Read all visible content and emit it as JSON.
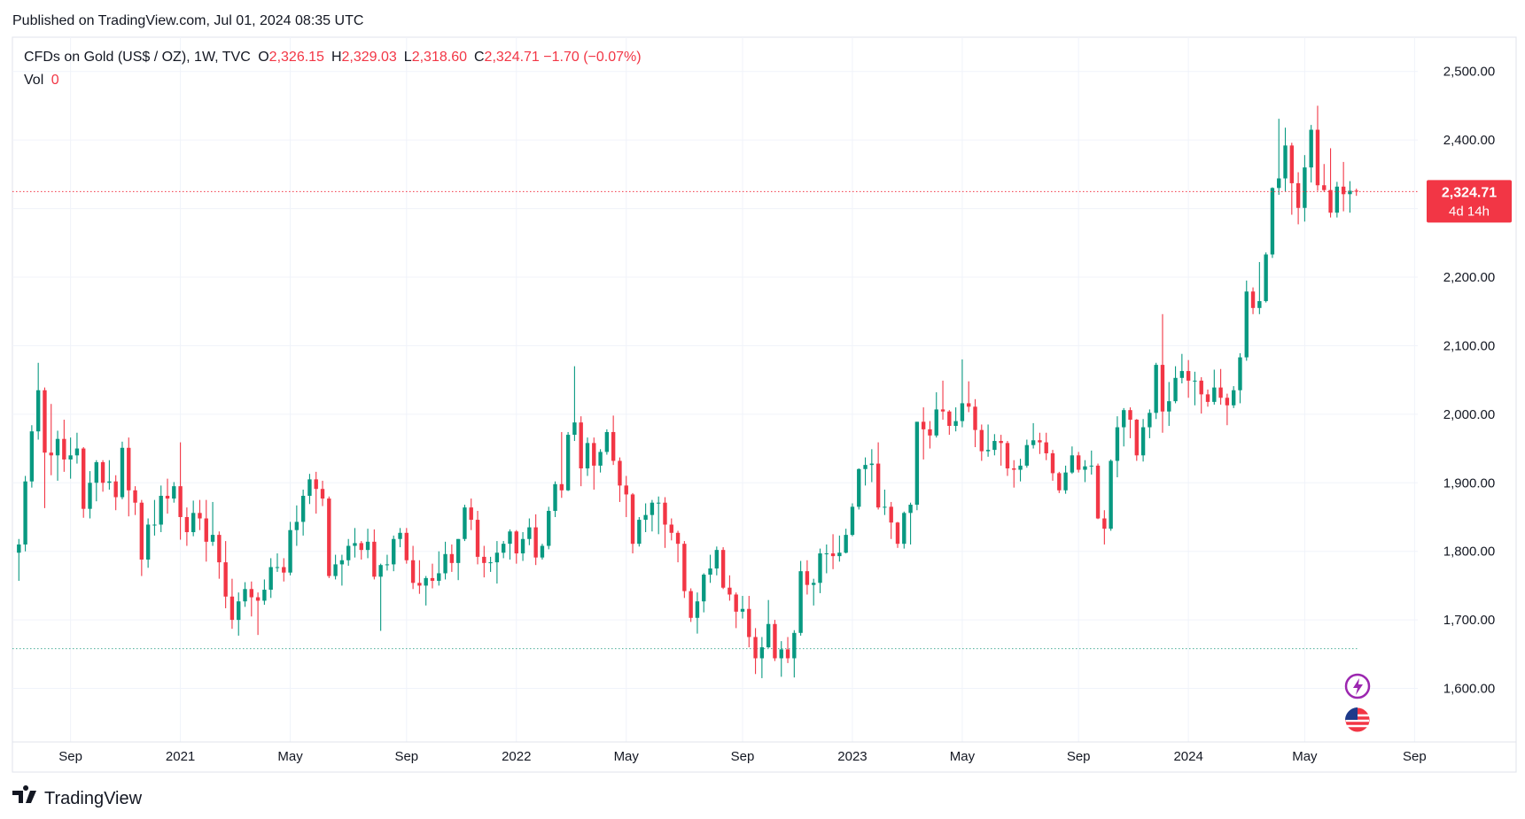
{
  "header": {
    "published": "Published on TradingView.com, Jul 01, 2024 08:35 UTC",
    "symbol": "CFDs on Gold (US$ / OZ), 1W, TVC",
    "ohlc": [
      {
        "letter": "O",
        "text": "2,326.15"
      },
      {
        "letter": "H",
        "text": "2,329.03"
      },
      {
        "letter": "L",
        "text": "2,318.60"
      },
      {
        "letter": "C",
        "text": "2,324.71"
      }
    ],
    "change": "−1.70 (−0.07%)",
    "volume_label": "Vol",
    "volume": "0"
  },
  "footer": {
    "brand": "TradingView"
  },
  "chart_data": {
    "type": "candlestick",
    "up_color": "#089981",
    "down_color": "#f23645",
    "xlim": [
      -1,
      216.5
    ],
    "ylim": [
      1478,
      2550
    ],
    "xticks": [
      {
        "value": 8,
        "label": "Sep"
      },
      {
        "value": 25,
        "label": "2021"
      },
      {
        "value": 42,
        "label": "May"
      },
      {
        "value": 60,
        "label": "Sep"
      },
      {
        "value": 77,
        "label": "2022"
      },
      {
        "value": 94,
        "label": "May"
      },
      {
        "value": 112,
        "label": "Sep"
      },
      {
        "value": 129,
        "label": "2023"
      },
      {
        "value": 146,
        "label": "May"
      },
      {
        "value": 164,
        "label": "Sep"
      },
      {
        "value": 181,
        "label": "2024"
      },
      {
        "value": 199,
        "label": "May"
      },
      {
        "value": 216,
        "label": "Sep"
      }
    ],
    "yticks": [
      {
        "value": 1600,
        "label": "1,600.00"
      },
      {
        "value": 1700,
        "label": "1,700.00"
      },
      {
        "value": 1800,
        "label": "1,800.00"
      },
      {
        "value": 1900,
        "label": "1,900.00"
      },
      {
        "value": 2000,
        "label": "2,000.00"
      },
      {
        "value": 2100,
        "label": "2,100.00"
      },
      {
        "value": 2200,
        "label": "2,200.00"
      },
      {
        "value": 2300,
        "label": "2,300.00"
      },
      {
        "value": 2400,
        "label": "2,400.00"
      },
      {
        "value": 2500,
        "label": "2,500.00"
      }
    ],
    "grid": true,
    "price_label": {
      "value": 2324.71,
      "label": "2,324.71"
    },
    "countdown": "4d 14h",
    "baseline": 1658,
    "baseline_color": "#4caf9a",
    "ohlc": [
      [
        1798,
        1818,
        1757,
        1810
      ],
      [
        1810,
        1910,
        1800,
        1902
      ],
      [
        1902,
        1984,
        1893,
        1975
      ],
      [
        1975,
        2075,
        1963,
        2035
      ],
      [
        2035,
        2039,
        1863,
        1944
      ],
      [
        1944,
        2015,
        1911,
        1940
      ],
      [
        1940,
        1976,
        1903,
        1964
      ],
      [
        1964,
        1992,
        1916,
        1934
      ],
      [
        1934,
        1966,
        1906,
        1940
      ],
      [
        1940,
        1973,
        1928,
        1950
      ],
      [
        1950,
        1952,
        1849,
        1862
      ],
      [
        1862,
        1917,
        1848,
        1900
      ],
      [
        1900,
        1933,
        1873,
        1930
      ],
      [
        1930,
        1933,
        1887,
        1900
      ],
      [
        1900,
        1933,
        1890,
        1902
      ],
      [
        1902,
        1911,
        1860,
        1879
      ],
      [
        1879,
        1960,
        1876,
        1951
      ],
      [
        1951,
        1966,
        1851,
        1889
      ],
      [
        1889,
        1895,
        1853,
        1871
      ],
      [
        1871,
        1875,
        1764,
        1788
      ],
      [
        1788,
        1848,
        1776,
        1839
      ],
      [
        1839,
        1875,
        1823,
        1839
      ],
      [
        1839,
        1896,
        1828,
        1881
      ],
      [
        1881,
        1906,
        1855,
        1877
      ],
      [
        1877,
        1901,
        1871,
        1895
      ],
      [
        1895,
        1959,
        1817,
        1850
      ],
      [
        1850,
        1864,
        1808,
        1828
      ],
      [
        1828,
        1874,
        1822,
        1856
      ],
      [
        1856,
        1875,
        1831,
        1848
      ],
      [
        1848,
        1875,
        1785,
        1814
      ],
      [
        1814,
        1872,
        1808,
        1824
      ],
      [
        1824,
        1829,
        1760,
        1784
      ],
      [
        1784,
        1815,
        1717,
        1734
      ],
      [
        1734,
        1760,
        1687,
        1700
      ],
      [
        1700,
        1740,
        1677,
        1727
      ],
      [
        1727,
        1755,
        1719,
        1745
      ],
      [
        1745,
        1756,
        1705,
        1733
      ],
      [
        1733,
        1740,
        1678,
        1728
      ],
      [
        1728,
        1759,
        1722,
        1744
      ],
      [
        1744,
        1790,
        1732,
        1777
      ],
      [
        1777,
        1797,
        1770,
        1777
      ],
      [
        1777,
        1790,
        1756,
        1769
      ],
      [
        1769,
        1843,
        1765,
        1831
      ],
      [
        1831,
        1867,
        1808,
        1843
      ],
      [
        1843,
        1890,
        1823,
        1881
      ],
      [
        1881,
        1913,
        1869,
        1905
      ],
      [
        1905,
        1916,
        1855,
        1891
      ],
      [
        1891,
        1903,
        1866,
        1877
      ],
      [
        1877,
        1880,
        1761,
        1764
      ],
      [
        1764,
        1795,
        1759,
        1781
      ],
      [
        1781,
        1795,
        1750,
        1787
      ],
      [
        1787,
        1818,
        1779,
        1808
      ],
      [
        1808,
        1834,
        1791,
        1812
      ],
      [
        1812,
        1815,
        1788,
        1802
      ],
      [
        1802,
        1833,
        1790,
        1814
      ],
      [
        1814,
        1832,
        1759,
        1763
      ],
      [
        1763,
        1782,
        1684,
        1780
      ],
      [
        1780,
        1795,
        1772,
        1781
      ],
      [
        1781,
        1823,
        1771,
        1818
      ],
      [
        1818,
        1834,
        1806,
        1827
      ],
      [
        1827,
        1834,
        1782,
        1787
      ],
      [
        1787,
        1808,
        1745,
        1754
      ],
      [
        1754,
        1787,
        1738,
        1750
      ],
      [
        1750,
        1764,
        1721,
        1761
      ],
      [
        1761,
        1782,
        1746,
        1757
      ],
      [
        1757,
        1800,
        1750,
        1768
      ],
      [
        1768,
        1814,
        1759,
        1796
      ],
      [
        1796,
        1810,
        1770,
        1783
      ],
      [
        1783,
        1818,
        1758,
        1818
      ],
      [
        1818,
        1868,
        1815,
        1864
      ],
      [
        1864,
        1877,
        1831,
        1846
      ],
      [
        1846,
        1859,
        1781,
        1792
      ],
      [
        1792,
        1808,
        1762,
        1783
      ],
      [
        1783,
        1792,
        1770,
        1784
      ],
      [
        1784,
        1815,
        1753,
        1798
      ],
      [
        1798,
        1815,
        1790,
        1811
      ],
      [
        1811,
        1832,
        1788,
        1829
      ],
      [
        1829,
        1831,
        1782,
        1797
      ],
      [
        1797,
        1828,
        1786,
        1818
      ],
      [
        1818,
        1848,
        1809,
        1835
      ],
      [
        1835,
        1854,
        1780,
        1791
      ],
      [
        1791,
        1811,
        1788,
        1808
      ],
      [
        1808,
        1865,
        1803,
        1859
      ],
      [
        1859,
        1902,
        1850,
        1898
      ],
      [
        1898,
        1974,
        1878,
        1889
      ],
      [
        1889,
        1974,
        1888,
        1970
      ],
      [
        1970,
        2070,
        1961,
        1988
      ],
      [
        1988,
        1997,
        1895,
        1921
      ],
      [
        1921,
        1966,
        1910,
        1958
      ],
      [
        1958,
        1966,
        1890,
        1925
      ],
      [
        1925,
        1949,
        1915,
        1945
      ],
      [
        1945,
        1978,
        1941,
        1974
      ],
      [
        1974,
        1998,
        1926,
        1932
      ],
      [
        1932,
        1937,
        1872,
        1896
      ],
      [
        1896,
        1910,
        1850,
        1883
      ],
      [
        1883,
        1885,
        1797,
        1811
      ],
      [
        1811,
        1850,
        1807,
        1846
      ],
      [
        1846,
        1870,
        1828,
        1853
      ],
      [
        1853,
        1875,
        1829,
        1871
      ],
      [
        1871,
        1880,
        1825,
        1871
      ],
      [
        1871,
        1879,
        1805,
        1839
      ],
      [
        1839,
        1848,
        1816,
        1827
      ],
      [
        1827,
        1830,
        1784,
        1811
      ],
      [
        1811,
        1815,
        1732,
        1742
      ],
      [
        1742,
        1746,
        1697,
        1703
      ],
      [
        1703,
        1740,
        1680,
        1727
      ],
      [
        1727,
        1768,
        1711,
        1766
      ],
      [
        1766,
        1795,
        1754,
        1775
      ],
      [
        1775,
        1807,
        1765,
        1802
      ],
      [
        1802,
        1806,
        1745,
        1747
      ],
      [
        1747,
        1765,
        1728,
        1737
      ],
      [
        1737,
        1740,
        1688,
        1712
      ],
      [
        1712,
        1735,
        1702,
        1716
      ],
      [
        1716,
        1735,
        1660,
        1675
      ],
      [
        1675,
        1688,
        1621,
        1644
      ],
      [
        1644,
        1675,
        1615,
        1660
      ],
      [
        1660,
        1729,
        1659,
        1694
      ],
      [
        1694,
        1700,
        1640,
        1644
      ],
      [
        1644,
        1669,
        1617,
        1657
      ],
      [
        1657,
        1675,
        1637,
        1644
      ],
      [
        1644,
        1685,
        1616,
        1681
      ],
      [
        1681,
        1786,
        1677,
        1771
      ],
      [
        1771,
        1787,
        1737,
        1751
      ],
      [
        1751,
        1760,
        1721,
        1754
      ],
      [
        1754,
        1804,
        1739,
        1797
      ],
      [
        1797,
        1810,
        1768,
        1797
      ],
      [
        1797,
        1825,
        1774,
        1793
      ],
      [
        1793,
        1823,
        1785,
        1798
      ],
      [
        1798,
        1833,
        1797,
        1824
      ],
      [
        1824,
        1870,
        1822,
        1865
      ],
      [
        1865,
        1921,
        1861,
        1920
      ],
      [
        1920,
        1937,
        1896,
        1926
      ],
      [
        1926,
        1949,
        1901,
        1928
      ],
      [
        1928,
        1959,
        1861,
        1864
      ],
      [
        1864,
        1890,
        1853,
        1865
      ],
      [
        1865,
        1872,
        1818,
        1842
      ],
      [
        1842,
        1843,
        1805,
        1811
      ],
      [
        1811,
        1858,
        1804,
        1856
      ],
      [
        1856,
        1871,
        1810,
        1868
      ],
      [
        1868,
        1989,
        1860,
        1989
      ],
      [
        1989,
        2010,
        1934,
        1978
      ],
      [
        1978,
        1990,
        1950,
        1969
      ],
      [
        1969,
        2032,
        1966,
        2007
      ],
      [
        2007,
        2049,
        1992,
        2004
      ],
      [
        2004,
        2006,
        1970,
        1983
      ],
      [
        1983,
        2010,
        1975,
        1990
      ],
      [
        1990,
        2080,
        1981,
        2016
      ],
      [
        2016,
        2048,
        2003,
        2011
      ],
      [
        2011,
        2022,
        1952,
        1977
      ],
      [
        1977,
        1985,
        1932,
        1946
      ],
      [
        1946,
        1985,
        1938,
        1948
      ],
      [
        1948,
        1971,
        1940,
        1961
      ],
      [
        1961,
        1970,
        1925,
        1958
      ],
      [
        1958,
        1961,
        1910,
        1921
      ],
      [
        1921,
        1933,
        1893,
        1919
      ],
      [
        1919,
        1935,
        1902,
        1925
      ],
      [
        1925,
        1963,
        1922,
        1955
      ],
      [
        1955,
        1987,
        1950,
        1962
      ],
      [
        1962,
        1973,
        1942,
        1959
      ],
      [
        1959,
        1973,
        1933,
        1943
      ],
      [
        1943,
        1948,
        1903,
        1914
      ],
      [
        1914,
        1916,
        1885,
        1889
      ],
      [
        1889,
        1925,
        1884,
        1915
      ],
      [
        1915,
        1953,
        1913,
        1940
      ],
      [
        1940,
        1945,
        1915,
        1919
      ],
      [
        1919,
        1933,
        1901,
        1924
      ],
      [
        1924,
        1947,
        1912,
        1925
      ],
      [
        1925,
        1928,
        1847,
        1848
      ],
      [
        1848,
        1860,
        1810,
        1833
      ],
      [
        1833,
        1934,
        1830,
        1932
      ],
      [
        1932,
        1997,
        1908,
        1981
      ],
      [
        1981,
        2009,
        1953,
        2006
      ],
      [
        2006,
        2010,
        1965,
        1992
      ],
      [
        1992,
        1993,
        1932,
        1940
      ],
      [
        1940,
        1993,
        1931,
        1981
      ],
      [
        1981,
        2007,
        1965,
        2002
      ],
      [
        2002,
        2075,
        1993,
        2072
      ],
      [
        2072,
        2146,
        1973,
        2004
      ],
      [
        2004,
        2047,
        1983,
        2019
      ],
      [
        2019,
        2070,
        2016,
        2053
      ],
      [
        2053,
        2088,
        2045,
        2063
      ],
      [
        2063,
        2079,
        2024,
        2049
      ],
      [
        2049,
        2062,
        2013,
        2049
      ],
      [
        2049,
        2054,
        2001,
        2029
      ],
      [
        2029,
        2036,
        2011,
        2018
      ],
      [
        2018,
        2065,
        2014,
        2039
      ],
      [
        2039,
        2066,
        2014,
        2024
      ],
      [
        2024,
        2030,
        1984,
        2013
      ],
      [
        2013,
        2041,
        2009,
        2035
      ],
      [
        2035,
        2089,
        2016,
        2083
      ],
      [
        2083,
        2195,
        2078,
        2179
      ],
      [
        2179,
        2185,
        2146,
        2155
      ],
      [
        2155,
        2222,
        2146,
        2165
      ],
      [
        2165,
        2236,
        2163,
        2233
      ],
      [
        2233,
        2331,
        2228,
        2330
      ],
      [
        2330,
        2431,
        2320,
        2344
      ],
      [
        2344,
        2418,
        2325,
        2392
      ],
      [
        2392,
        2396,
        2291,
        2337
      ],
      [
        2337,
        2353,
        2277,
        2301
      ],
      [
        2301,
        2378,
        2281,
        2360
      ],
      [
        2360,
        2422,
        2338,
        2415
      ],
      [
        2415,
        2450,
        2326,
        2334
      ],
      [
        2334,
        2365,
        2324,
        2327
      ],
      [
        2327,
        2388,
        2287,
        2294
      ],
      [
        2294,
        2339,
        2287,
        2332
      ],
      [
        2332,
        2368,
        2296,
        2321
      ],
      [
        2321,
        2340,
        2294,
        2326
      ],
      [
        2326.15,
        2329.03,
        2318.6,
        2324.71
      ]
    ]
  }
}
